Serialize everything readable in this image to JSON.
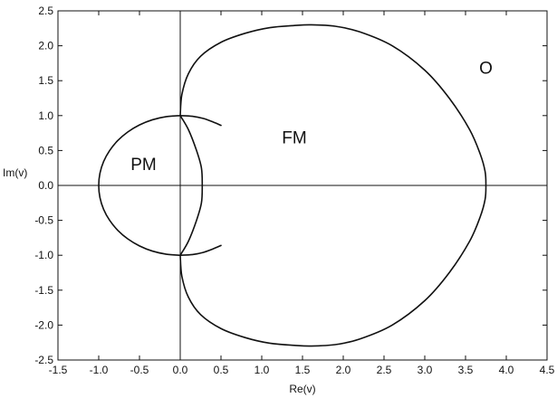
{
  "chart_data": {
    "type": "line",
    "xlabel": "Re(v)",
    "ylabel": "Im(v)",
    "xlim": [
      -1.5,
      4.5
    ],
    "ylim": [
      -2.5,
      2.5
    ],
    "grid": false,
    "xticks": [
      "-1.5",
      "-1.0",
      "-0.5",
      "0.0",
      "0.5",
      "1.0",
      "1.5",
      "2.0",
      "2.5",
      "3.0",
      "3.5",
      "4.0",
      "4.5"
    ],
    "yticks": [
      "2.5",
      "2.0",
      "1.5",
      "1.0",
      "0.5",
      "0.0",
      "-0.5",
      "-1.0",
      "-1.5",
      "-2.0",
      "-2.5"
    ],
    "annotations": [
      {
        "text": "PM",
        "x": -0.45,
        "y": 0.22
      },
      {
        "text": "FM",
        "x": 1.4,
        "y": 0.6
      },
      {
        "text": "O",
        "x": 3.75,
        "y": 1.6
      }
    ],
    "series": [
      {
        "id": "pm-circle",
        "x": [
          0.0,
          -0.17,
          -0.342,
          -0.5,
          -0.643,
          -0.766,
          -0.866,
          -0.94,
          -0.985,
          -1.0,
          -0.985,
          -0.94,
          -0.866,
          -0.766,
          -0.643,
          -0.5,
          -0.342,
          -0.17,
          0.0
        ],
        "y": [
          1.0,
          0.985,
          0.94,
          0.866,
          0.766,
          0.643,
          0.5,
          0.342,
          0.174,
          0.0,
          -0.174,
          -0.342,
          -0.5,
          -0.643,
          -0.766,
          -0.866,
          -0.94,
          -0.985,
          -1.0
        ]
      },
      {
        "id": "upper-arc",
        "x": [
          0.0,
          0.15,
          0.28,
          0.4,
          0.5
        ],
        "y": [
          1.0,
          0.99,
          0.96,
          0.91,
          0.86
        ]
      },
      {
        "id": "lower-arc",
        "x": [
          0.0,
          0.15,
          0.28,
          0.4,
          0.5
        ],
        "y": [
          -1.0,
          -0.99,
          -0.96,
          -0.91,
          -0.86
        ]
      },
      {
        "id": "inner-lens",
        "x": [
          0.0,
          0.1,
          0.2,
          0.26,
          0.27,
          0.26,
          0.2,
          0.1,
          0.0
        ],
        "y": [
          1.0,
          0.8,
          0.5,
          0.25,
          0.0,
          -0.25,
          -0.5,
          -0.8,
          -1.0
        ]
      },
      {
        "id": "fm-boundary",
        "x": [
          0.0,
          0.02,
          0.1,
          0.25,
          0.5,
          0.8,
          1.1,
          1.4,
          1.6,
          1.9,
          2.2,
          2.6,
          3.0,
          3.3,
          3.55,
          3.68,
          3.74,
          3.75,
          3.74,
          3.68,
          3.55,
          3.3,
          3.0,
          2.6,
          2.2,
          1.9,
          1.6,
          1.4,
          1.1,
          0.8,
          0.5,
          0.25,
          0.1,
          0.02,
          0.0
        ],
        "y": [
          1.0,
          1.3,
          1.6,
          1.85,
          2.05,
          2.18,
          2.26,
          2.29,
          2.3,
          2.28,
          2.2,
          2.0,
          1.65,
          1.25,
          0.8,
          0.45,
          0.2,
          0.0,
          -0.2,
          -0.45,
          -0.8,
          -1.25,
          -1.65,
          -2.0,
          -2.2,
          -2.28,
          -2.3,
          -2.29,
          -2.26,
          -2.18,
          -2.05,
          -1.85,
          -1.6,
          -1.3,
          -1.0
        ]
      }
    ]
  }
}
